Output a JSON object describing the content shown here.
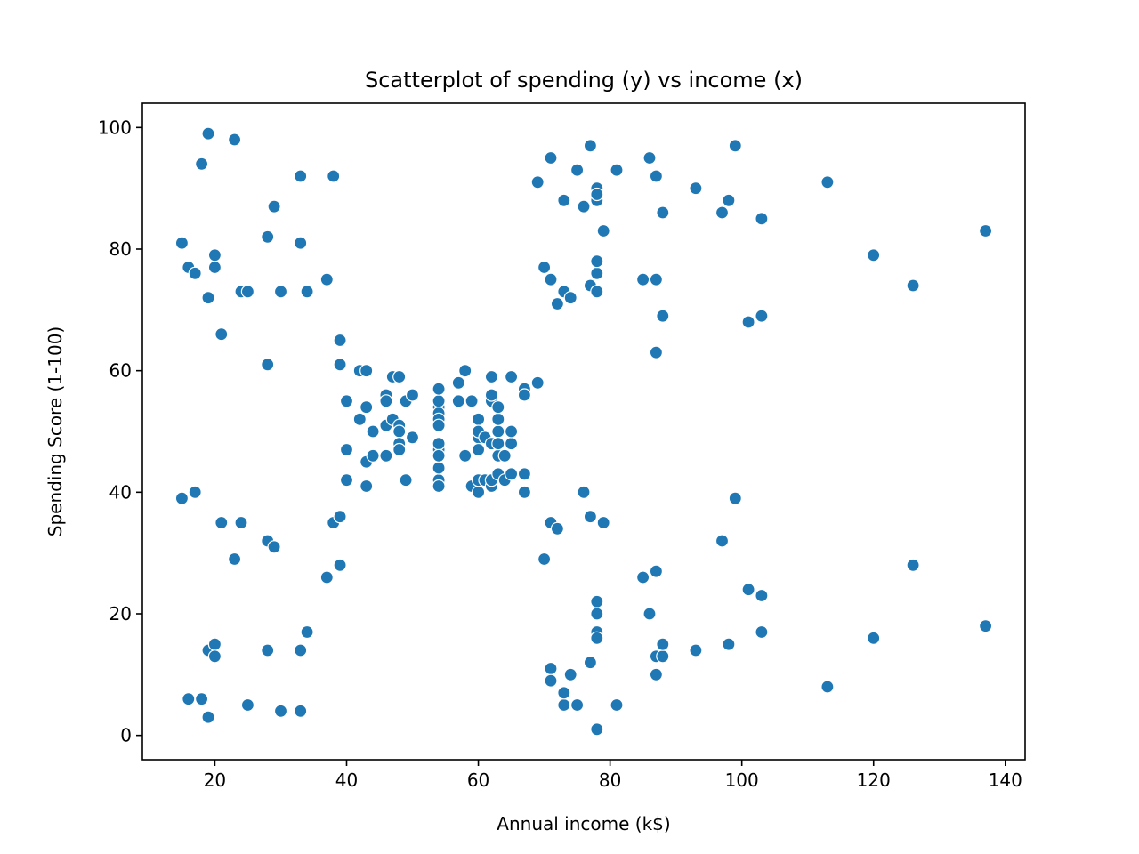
{
  "chart_data": {
    "type": "scatter",
    "title": "Scatterplot of spending (y) vs income (x)",
    "xlabel": "Annual income (k$)",
    "ylabel": "Spending Score (1-100)",
    "xlim": [
      9,
      143
    ],
    "ylim": [
      -4,
      104
    ],
    "x_ticks": [
      20,
      40,
      60,
      80,
      100,
      120,
      140
    ],
    "y_ticks": [
      0,
      20,
      40,
      60,
      80,
      100
    ],
    "grid": false,
    "legend": "none",
    "marker_color": "#1f77b4",
    "marker_edge_color": "#ffffff",
    "points": [
      [
        15,
        39
      ],
      [
        15,
        81
      ],
      [
        16,
        6
      ],
      [
        16,
        77
      ],
      [
        17,
        40
      ],
      [
        17,
        76
      ],
      [
        18,
        6
      ],
      [
        18,
        94
      ],
      [
        19,
        3
      ],
      [
        19,
        72
      ],
      [
        19,
        14
      ],
      [
        19,
        99
      ],
      [
        20,
        15
      ],
      [
        20,
        77
      ],
      [
        20,
        13
      ],
      [
        20,
        79
      ],
      [
        21,
        35
      ],
      [
        21,
        66
      ],
      [
        23,
        29
      ],
      [
        23,
        98
      ],
      [
        24,
        35
      ],
      [
        24,
        73
      ],
      [
        25,
        5
      ],
      [
        25,
        73
      ],
      [
        28,
        14
      ],
      [
        28,
        82
      ],
      [
        28,
        32
      ],
      [
        28,
        61
      ],
      [
        29,
        31
      ],
      [
        29,
        87
      ],
      [
        30,
        4
      ],
      [
        30,
        73
      ],
      [
        33,
        4
      ],
      [
        33,
        92
      ],
      [
        33,
        14
      ],
      [
        33,
        81
      ],
      [
        34,
        17
      ],
      [
        34,
        73
      ],
      [
        37,
        26
      ],
      [
        37,
        75
      ],
      [
        38,
        35
      ],
      [
        38,
        92
      ],
      [
        39,
        36
      ],
      [
        39,
        61
      ],
      [
        39,
        28
      ],
      [
        39,
        65
      ],
      [
        40,
        55
      ],
      [
        40,
        47
      ],
      [
        40,
        42
      ],
      [
        42,
        52
      ],
      [
        42,
        60
      ],
      [
        43,
        54
      ],
      [
        43,
        60
      ],
      [
        43,
        45
      ],
      [
        43,
        41
      ],
      [
        44,
        50
      ],
      [
        44,
        46
      ],
      [
        46,
        51
      ],
      [
        46,
        46
      ],
      [
        46,
        56
      ],
      [
        46,
        55
      ],
      [
        47,
        52
      ],
      [
        47,
        59
      ],
      [
        48,
        51
      ],
      [
        48,
        59
      ],
      [
        48,
        50
      ],
      [
        48,
        48
      ],
      [
        48,
        47
      ],
      [
        49,
        55
      ],
      [
        49,
        42
      ],
      [
        50,
        49
      ],
      [
        50,
        56
      ],
      [
        54,
        47
      ],
      [
        54,
        54
      ],
      [
        54,
        53
      ],
      [
        54,
        48
      ],
      [
        54,
        52
      ],
      [
        54,
        42
      ],
      [
        54,
        51
      ],
      [
        54,
        55
      ],
      [
        54,
        41
      ],
      [
        54,
        44
      ],
      [
        54,
        57
      ],
      [
        54,
        46
      ],
      [
        57,
        58
      ],
      [
        57,
        55
      ],
      [
        58,
        60
      ],
      [
        58,
        46
      ],
      [
        59,
        55
      ],
      [
        59,
        41
      ],
      [
        60,
        49
      ],
      [
        60,
        40
      ],
      [
        60,
        42
      ],
      [
        60,
        52
      ],
      [
        60,
        47
      ],
      [
        60,
        50
      ],
      [
        61,
        42
      ],
      [
        61,
        49
      ],
      [
        62,
        41
      ],
      [
        62,
        48
      ],
      [
        62,
        59
      ],
      [
        62,
        55
      ],
      [
        62,
        56
      ],
      [
        62,
        42
      ],
      [
        63,
        50
      ],
      [
        63,
        46
      ],
      [
        63,
        43
      ],
      [
        63,
        48
      ],
      [
        63,
        52
      ],
      [
        63,
        54
      ],
      [
        64,
        42
      ],
      [
        64,
        46
      ],
      [
        65,
        48
      ],
      [
        65,
        50
      ],
      [
        65,
        43
      ],
      [
        65,
        59
      ],
      [
        67,
        43
      ],
      [
        67,
        57
      ],
      [
        67,
        56
      ],
      [
        67,
        40
      ],
      [
        69,
        58
      ],
      [
        69,
        91
      ],
      [
        70,
        29
      ],
      [
        70,
        77
      ],
      [
        71,
        35
      ],
      [
        71,
        95
      ],
      [
        71,
        11
      ],
      [
        71,
        75
      ],
      [
        71,
        9
      ],
      [
        72,
        34
      ],
      [
        72,
        71
      ],
      [
        73,
        5
      ],
      [
        73,
        88
      ],
      [
        73,
        7
      ],
      [
        73,
        73
      ],
      [
        74,
        10
      ],
      [
        74,
        72
      ],
      [
        75,
        5
      ],
      [
        75,
        93
      ],
      [
        76,
        40
      ],
      [
        76,
        87
      ],
      [
        77,
        12
      ],
      [
        77,
        97
      ],
      [
        77,
        36
      ],
      [
        77,
        74
      ],
      [
        78,
        22
      ],
      [
        78,
        90
      ],
      [
        78,
        17
      ],
      [
        78,
        88
      ],
      [
        78,
        20
      ],
      [
        78,
        76
      ],
      [
        78,
        16
      ],
      [
        78,
        89
      ],
      [
        78,
        1
      ],
      [
        78,
        78
      ],
      [
        78,
        1
      ],
      [
        78,
        73
      ],
      [
        79,
        35
      ],
      [
        79,
        83
      ],
      [
        81,
        5
      ],
      [
        81,
        93
      ],
      [
        85,
        26
      ],
      [
        85,
        75
      ],
      [
        86,
        20
      ],
      [
        86,
        95
      ],
      [
        87,
        27
      ],
      [
        87,
        63
      ],
      [
        87,
        13
      ],
      [
        87,
        75
      ],
      [
        87,
        10
      ],
      [
        87,
        92
      ],
      [
        88,
        13
      ],
      [
        88,
        86
      ],
      [
        88,
        15
      ],
      [
        88,
        69
      ],
      [
        93,
        14
      ],
      [
        93,
        90
      ],
      [
        97,
        32
      ],
      [
        97,
        86
      ],
      [
        98,
        15
      ],
      [
        98,
        88
      ],
      [
        99,
        39
      ],
      [
        99,
        97
      ],
      [
        101,
        24
      ],
      [
        101,
        68
      ],
      [
        103,
        17
      ],
      [
        103,
        85
      ],
      [
        103,
        23
      ],
      [
        103,
        69
      ],
      [
        113,
        8
      ],
      [
        113,
        91
      ],
      [
        120,
        16
      ],
      [
        120,
        79
      ],
      [
        126,
        28
      ],
      [
        126,
        74
      ],
      [
        137,
        18
      ],
      [
        137,
        83
      ]
    ]
  }
}
